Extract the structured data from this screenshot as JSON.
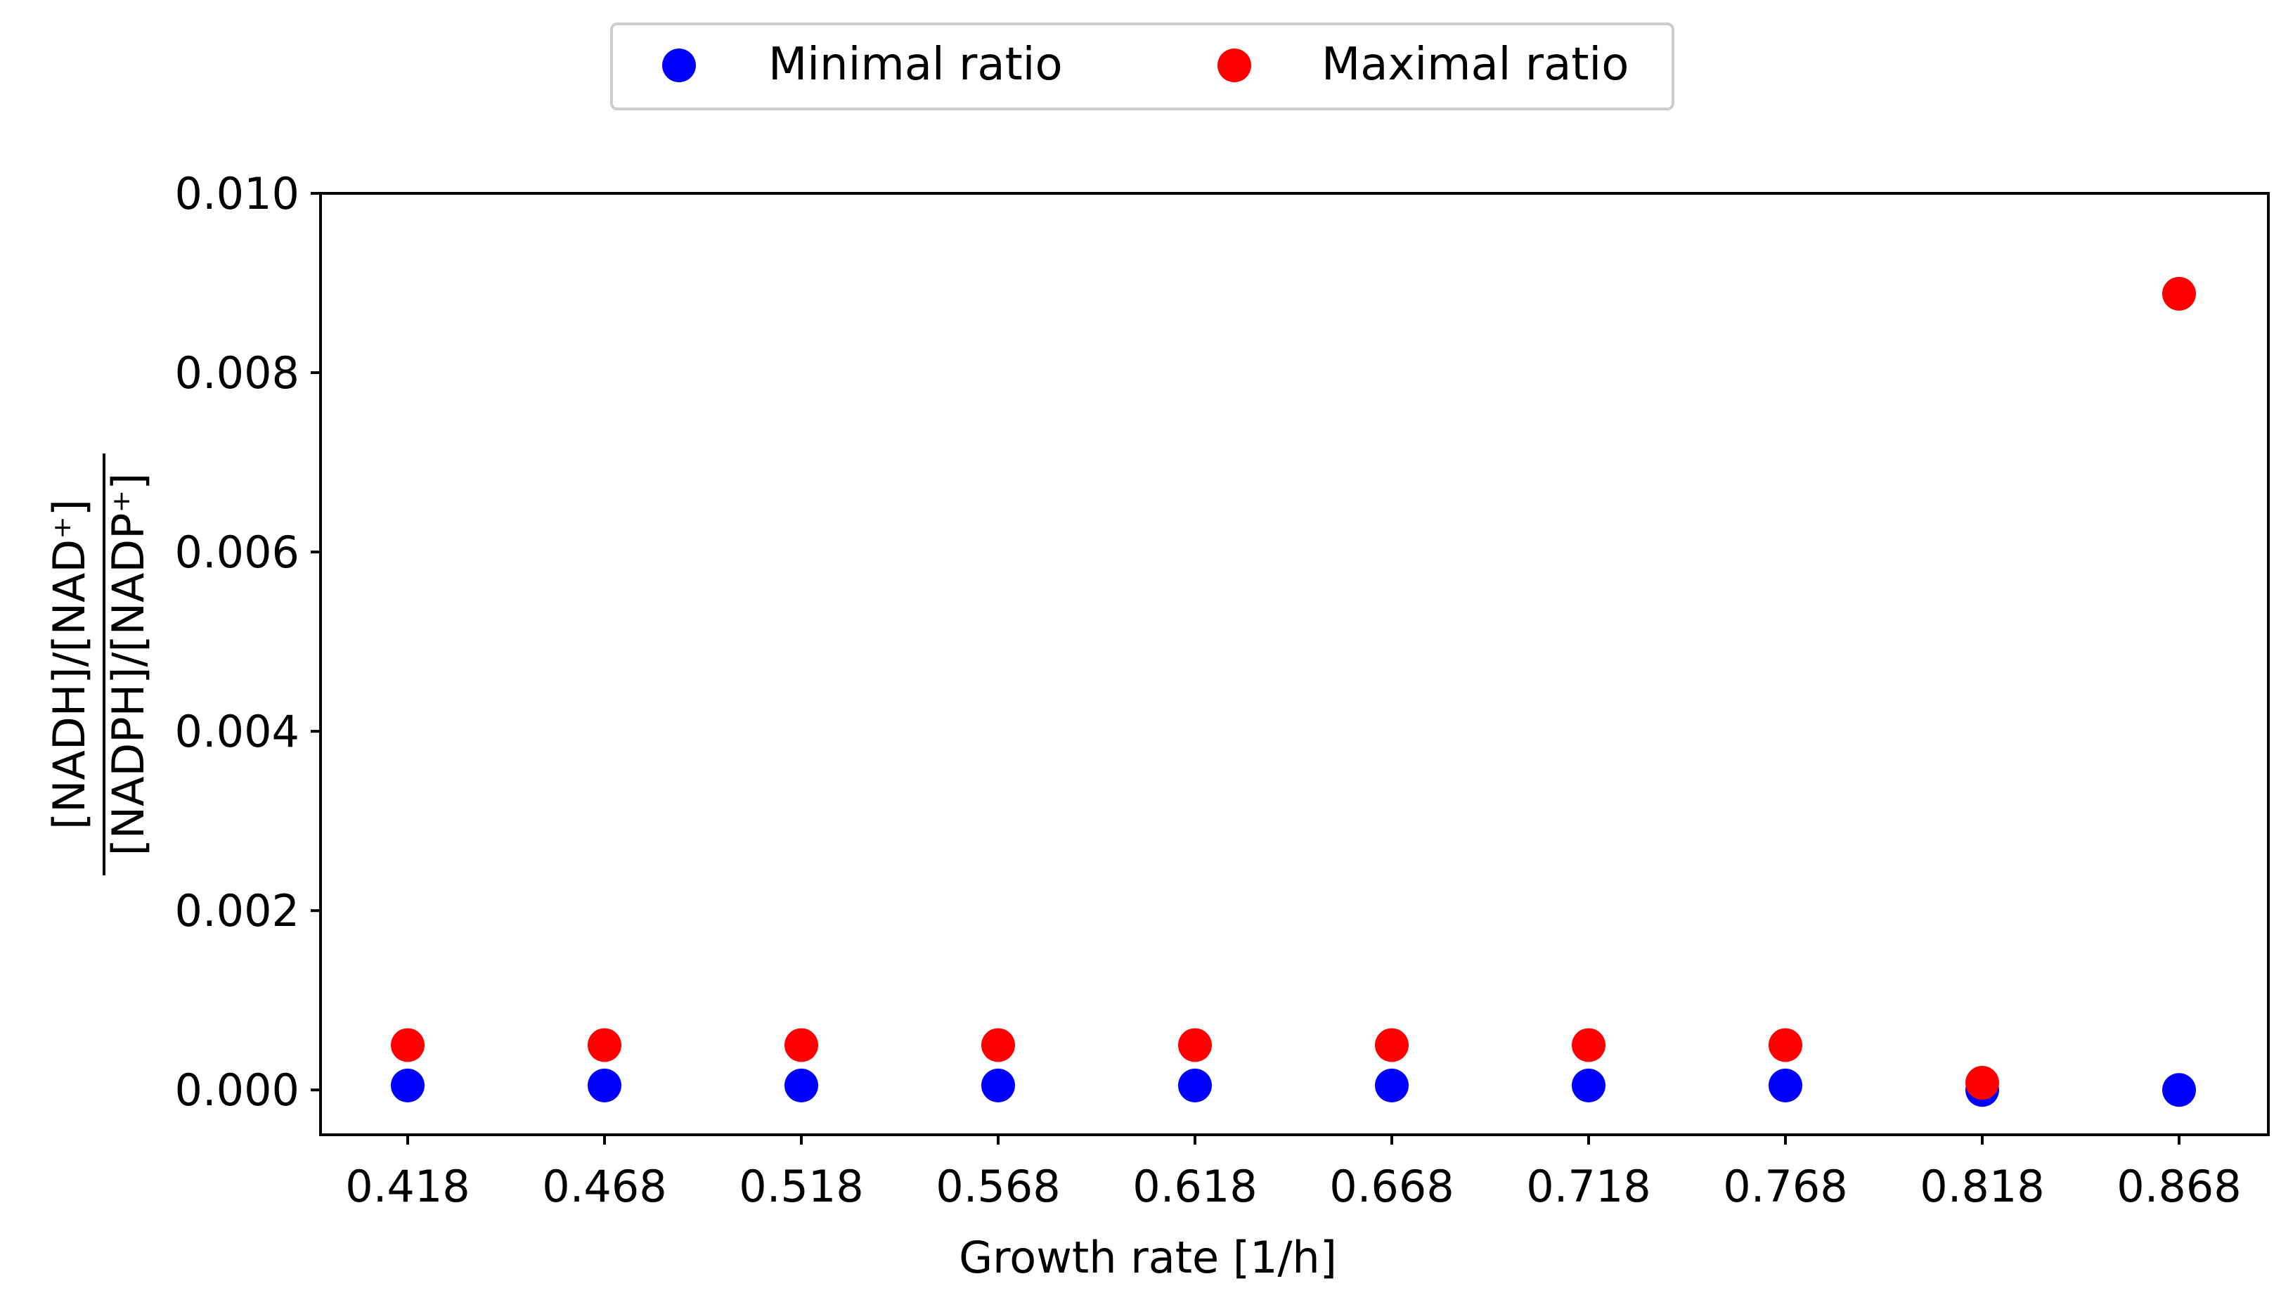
{
  "chart_data": {
    "type": "scatter",
    "xlabel": "Growth rate [1/h]",
    "ylabel": {
      "numerator": "[NADH]/[NAD⁺]",
      "denominator": "[NADPH]/[NADP⁺]"
    },
    "categories": [
      "0.418",
      "0.468",
      "0.518",
      "0.568",
      "0.618",
      "0.668",
      "0.718",
      "0.768",
      "0.818",
      "0.868"
    ],
    "series": [
      {
        "name": "Minimal ratio",
        "color": "#0000ff",
        "values": [
          5e-05,
          5e-05,
          5e-05,
          5e-05,
          5e-05,
          5e-05,
          5e-05,
          5e-05,
          0.0,
          0.0
        ]
      },
      {
        "name": "Maximal ratio",
        "color": "#ff0000",
        "values": [
          0.0005,
          0.0005,
          0.0005,
          0.0005,
          0.0005,
          0.0005,
          0.0005,
          0.0005,
          8e-05,
          0.00888
        ]
      }
    ],
    "xticks": [
      "0.418",
      "0.468",
      "0.518",
      "0.568",
      "0.618",
      "0.668",
      "0.718",
      "0.768",
      "0.818",
      "0.868"
    ],
    "yticks": [
      "0.000",
      "0.002",
      "0.004",
      "0.006",
      "0.008",
      "0.010"
    ],
    "ylim": [
      -0.0005,
      0.01
    ],
    "grid": false,
    "legend_position": "top-center"
  }
}
